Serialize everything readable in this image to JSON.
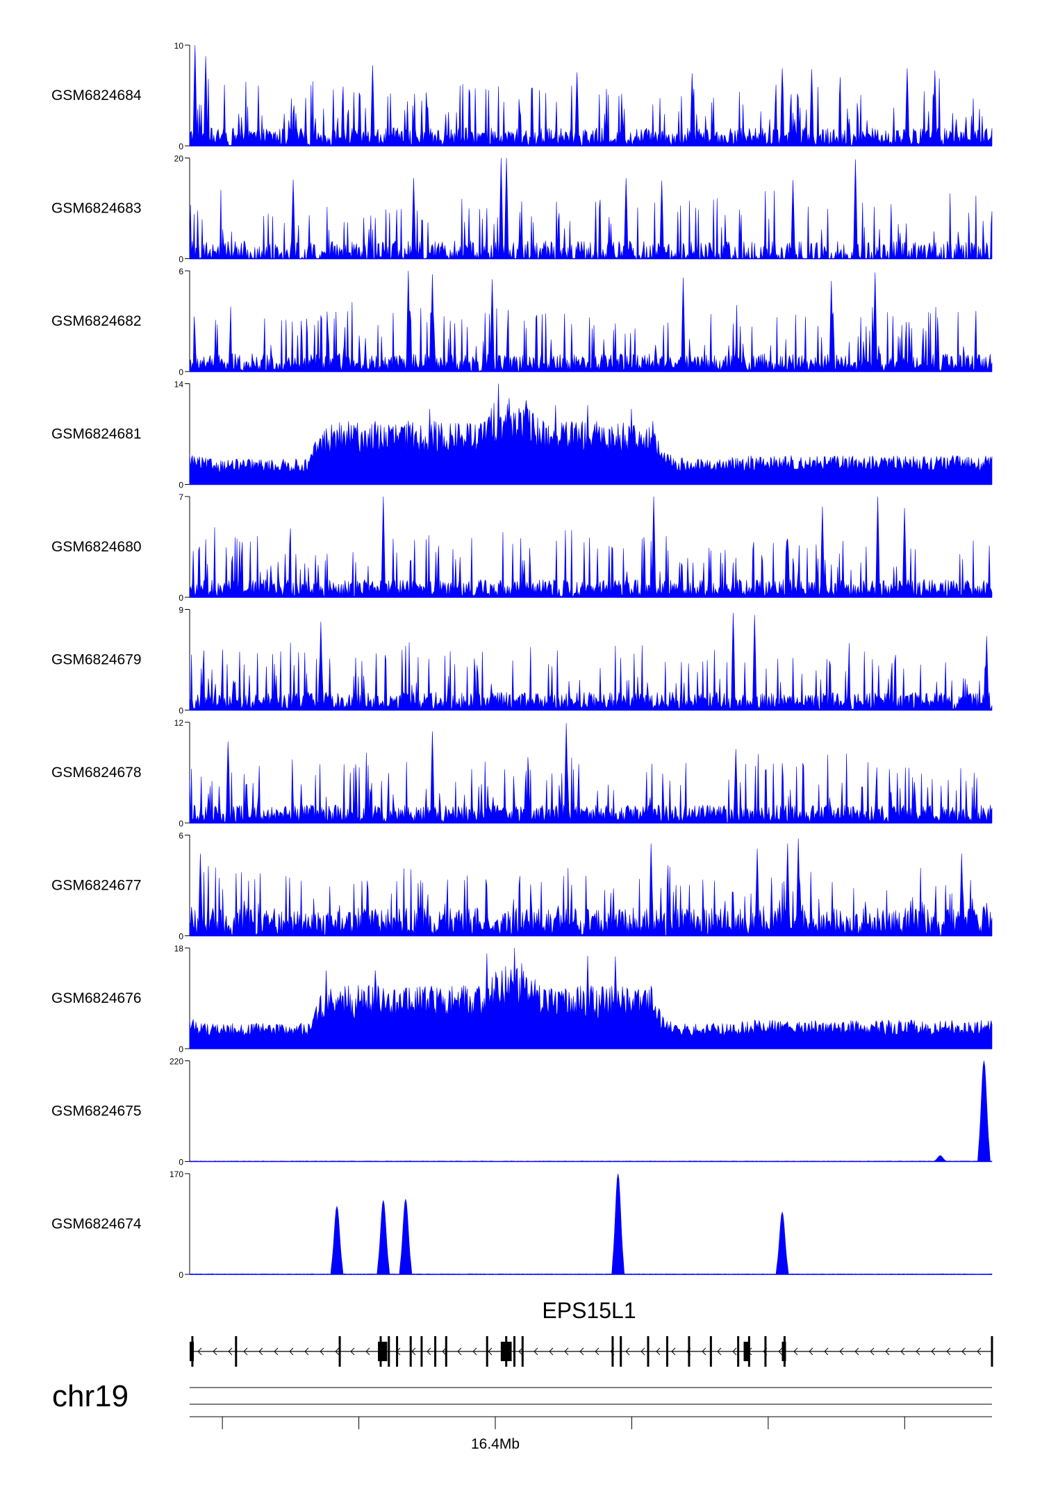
{
  "chart_data": {
    "type": "area",
    "title": "",
    "xlabel": "",
    "ylabel": "",
    "color": "#0000ff",
    "gene_color": "#000000",
    "chromosome": "chr19",
    "genomic_axis": {
      "range_mb": [
        16.339,
        16.486
      ],
      "ticks_mb": [
        16.345,
        16.37,
        16.395,
        16.42,
        16.445,
        16.47
      ],
      "labeled_tick": {
        "mb": 16.395,
        "label": "16.4Mb"
      }
    },
    "tracks": [
      {
        "name": "GSM6824684",
        "ylim": [
          0,
          10
        ],
        "ymin_label": "0",
        "ymax_label": "10",
        "profile": "sparse",
        "peaks": [
          [
            16.34,
            10
          ],
          [
            16.342,
            8.9
          ],
          [
            16.3725,
            8
          ],
          [
            16.41,
            7.3
          ],
          [
            16.431,
            7.2
          ],
          [
            16.4475,
            7.7
          ],
          [
            16.453,
            7.6
          ],
          [
            16.4705,
            7.7
          ],
          [
            16.4755,
            7.5
          ]
        ]
      },
      {
        "name": "GSM6824683",
        "ylim": [
          0,
          20
        ],
        "ymin_label": "0",
        "ymax_label": "20",
        "profile": "gappy",
        "peaks": [
          [
            16.358,
            15.7
          ],
          [
            16.38,
            16
          ],
          [
            16.396,
            20
          ],
          [
            16.397,
            20
          ],
          [
            16.419,
            16
          ],
          [
            16.4255,
            15.5
          ],
          [
            16.4495,
            15.6
          ],
          [
            16.461,
            19.7
          ]
        ]
      },
      {
        "name": "GSM6824682",
        "ylim": [
          0,
          6
        ],
        "ymin_label": "0",
        "ymax_label": "6",
        "profile": "sparse",
        "peaks": [
          [
            16.379,
            6
          ],
          [
            16.3835,
            5.8
          ],
          [
            16.3945,
            5.5
          ],
          [
            16.4295,
            5.6
          ],
          [
            16.4645,
            5.9
          ],
          [
            16.4565,
            5.4
          ]
        ]
      },
      {
        "name": "GSM6824681",
        "ylim": [
          0,
          14
        ],
        "ymin_label": "0",
        "ymax_label": "14",
        "profile": "broad",
        "peaks": [
          [
            16.3955,
            14
          ],
          [
            16.3975,
            12
          ],
          [
            16.383,
            10.5
          ],
          [
            16.406,
            11
          ],
          [
            16.412,
            11
          ],
          [
            16.42,
            10.5
          ]
        ]
      },
      {
        "name": "GSM6824680",
        "ylim": [
          0,
          7
        ],
        "ymin_label": "0",
        "ymax_label": "7",
        "profile": "sparse",
        "peaks": [
          [
            16.3745,
            7
          ],
          [
            16.424,
            7
          ],
          [
            16.465,
            7
          ],
          [
            16.47,
            6.2
          ],
          [
            16.455,
            6.3
          ]
        ]
      },
      {
        "name": "GSM6824679",
        "ylim": [
          0,
          9
        ],
        "ymin_label": "0",
        "ymax_label": "9",
        "profile": "sparse",
        "peaks": [
          [
            16.363,
            7.9
          ],
          [
            16.4385,
            8.7
          ],
          [
            16.4425,
            8.5
          ],
          [
            16.485,
            6.6
          ]
        ]
      },
      {
        "name": "GSM6824678",
        "ylim": [
          0,
          12
        ],
        "ymin_label": "0",
        "ymax_label": "12",
        "profile": "sparse",
        "peaks": [
          [
            16.346,
            9.7
          ],
          [
            16.3835,
            10.9
          ],
          [
            16.408,
            11.9
          ],
          [
            16.439,
            8.8
          ]
        ]
      },
      {
        "name": "GSM6824677",
        "ylim": [
          0,
          6
        ],
        "ymin_label": "0",
        "ymax_label": "6",
        "profile": "dense",
        "peaks": [
          [
            16.341,
            4.9
          ],
          [
            16.4235,
            5.5
          ],
          [
            16.4505,
            5.8
          ],
          [
            16.4485,
            5.5
          ],
          [
            16.443,
            5.2
          ],
          [
            16.4805,
            4.9
          ]
        ]
      },
      {
        "name": "GSM6824676",
        "ylim": [
          0,
          18
        ],
        "ymin_label": "0",
        "ymax_label": "18",
        "profile": "broad",
        "peaks": [
          [
            16.3985,
            18
          ],
          [
            16.3935,
            17
          ],
          [
            16.412,
            16.6
          ],
          [
            16.417,
            16.5
          ],
          [
            16.364,
            14
          ],
          [
            16.373,
            14
          ]
        ]
      },
      {
        "name": "GSM6824675",
        "ylim": [
          0,
          220
        ],
        "ymin_label": "0",
        "ymax_label": "220",
        "profile": "flat",
        "peaks": [
          [
            16.4845,
            220
          ],
          [
            16.4765,
            13
          ]
        ]
      },
      {
        "name": "GSM6824674",
        "ylim": [
          0,
          170
        ],
        "ymin_label": "0",
        "ymax_label": "170",
        "profile": "flat",
        "peaks": [
          [
            16.366,
            115
          ],
          [
            16.3745,
            125
          ],
          [
            16.3785,
            127
          ],
          [
            16.4175,
            170
          ],
          [
            16.4475,
            105
          ]
        ]
      }
    ],
    "gene": {
      "name": "EPS15L1",
      "strand": "-",
      "start_mb": 16.339,
      "end_mb": 16.486,
      "exons_mb": [
        16.3395,
        16.3475,
        16.3665,
        16.374,
        16.3755,
        16.377,
        16.3795,
        16.3815,
        16.384,
        16.386,
        16.3935,
        16.397,
        16.3985,
        16.4,
        16.4165,
        16.418,
        16.423,
        16.4265,
        16.4305,
        16.4345,
        16.4395,
        16.4415,
        16.4445,
        16.448,
        16.486
      ],
      "thick_exons_mb": [
        [
          16.3735,
          16.3752
        ],
        [
          16.396,
          16.398
        ],
        [
          16.4405,
          16.4415
        ],
        [
          16.4475,
          16.4482
        ]
      ]
    }
  }
}
